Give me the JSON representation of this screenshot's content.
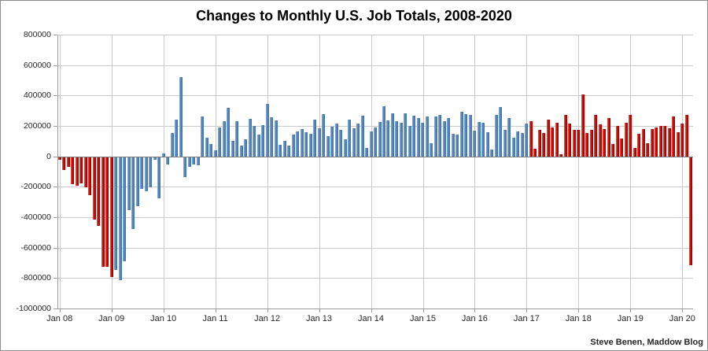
{
  "chart_data": {
    "type": "bar",
    "title": "Changes to Monthly U.S. Job Totals, 2008-2020",
    "xlabel": "",
    "ylabel": "",
    "unit": "net monthly change in U.S. jobs",
    "x_start": "Jan 2008",
    "x_end": "Mar 2020",
    "ylim": [
      -1000000,
      800000
    ],
    "grid": true,
    "y_ticks": [
      {
        "value": 800000,
        "label": "800000"
      },
      {
        "value": 600000,
        "label": "600000"
      },
      {
        "value": 400000,
        "label": "400000"
      },
      {
        "value": 200000,
        "label": "200000"
      },
      {
        "value": 0,
        "label": "0"
      },
      {
        "value": -200000,
        "label": "-200000"
      },
      {
        "value": -400000,
        "label": "-400000"
      },
      {
        "value": -600000,
        "label": "-600000"
      },
      {
        "value": -800000,
        "label": "-800000"
      },
      {
        "value": -1000000,
        "label": "-1000000"
      }
    ],
    "x_ticks": [
      {
        "index": 0,
        "label": "Jan 08"
      },
      {
        "index": 12,
        "label": "Jan 09"
      },
      {
        "index": 24,
        "label": "Jan 10"
      },
      {
        "index": 36,
        "label": "Jan 11"
      },
      {
        "index": 48,
        "label": "Jan 12"
      },
      {
        "index": 60,
        "label": "Jan 13"
      },
      {
        "index": 72,
        "label": "Jan 14"
      },
      {
        "index": 84,
        "label": "Jan 15"
      },
      {
        "index": 96,
        "label": "Jan 16"
      },
      {
        "index": 108,
        "label": "Jan 17"
      },
      {
        "index": 120,
        "label": "Jan 18"
      },
      {
        "index": 132,
        "label": "Jan 19"
      },
      {
        "index": 144,
        "label": "Jan 20"
      }
    ],
    "values": [
      -15000,
      -85000,
      -65000,
      -180000,
      -190000,
      -170000,
      -200000,
      -250000,
      -410000,
      -450000,
      -720000,
      -720000,
      -790000,
      -740000,
      -810000,
      -685000,
      -350000,
      -470000,
      -325000,
      -210000,
      -225000,
      -200000,
      -15000,
      -270000,
      20000,
      -50000,
      155000,
      240000,
      520000,
      -130000,
      -65000,
      -50000,
      -55000,
      260000,
      120000,
      80000,
      40000,
      190000,
      230000,
      320000,
      100000,
      230000,
      70000,
      110000,
      245000,
      200000,
      145000,
      205000,
      345000,
      255000,
      235000,
      75000,
      100000,
      70000,
      145000,
      165000,
      180000,
      160000,
      150000,
      240000,
      185000,
      280000,
      135000,
      195000,
      215000,
      175000,
      110000,
      240000,
      185000,
      215000,
      265000,
      55000,
      165000,
      190000,
      225000,
      330000,
      235000,
      285000,
      230000,
      220000,
      285000,
      200000,
      265000,
      250000,
      220000,
      260000,
      85000,
      260000,
      275000,
      230000,
      250000,
      150000,
      145000,
      295000,
      280000,
      270000,
      170000,
      225000,
      220000,
      160000,
      45000,
      270000,
      325000,
      175000,
      250000,
      125000,
      165000,
      155000,
      215000,
      230000,
      50000,
      175000,
      155000,
      240000,
      190000,
      220000,
      15000,
      270000,
      215000,
      175000,
      175000,
      405000,
      155000,
      175000,
      270000,
      210000,
      180000,
      250000,
      80000,
      200000,
      115000,
      220000,
      270000,
      56000,
      150000,
      180000,
      85000,
      180000,
      190000,
      200000,
      200000,
      185000,
      260000,
      160000,
      215000,
      273000,
      -710000
    ],
    "color_segments": [
      {
        "start_index": 0,
        "end_index": 12,
        "name": "red",
        "color": "#C00000"
      },
      {
        "start_index": 13,
        "end_index": 108,
        "name": "blue",
        "color": "#4F81BD"
      },
      {
        "start_index": 109,
        "end_index": 146,
        "name": "red",
        "color": "#C00000"
      }
    ],
    "colors": {
      "bar_red": "#C00000",
      "bar_blue": "#4F81BD",
      "gridline": "#C9C9C9",
      "axis": "#9A9A9A",
      "zero_line": "#7F7F7F",
      "text": "#262626",
      "title_text": "#000000",
      "background": "#FFFFFF"
    },
    "legend": "none"
  },
  "attribution": "Steve Benen, Maddow Blog"
}
